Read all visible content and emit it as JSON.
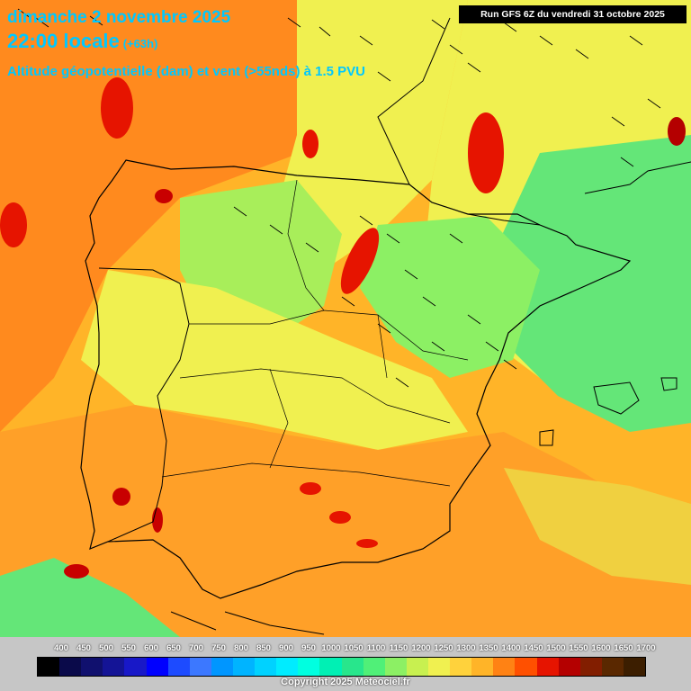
{
  "header": {
    "date": "dimanche 2 novembre 2025",
    "time": "22:00 locale",
    "lead": "(+63h)",
    "subtitle": "Altitude géopotentielle (dam) et vent (>55nds) à 1.5 PVU",
    "run": "Run GFS 6Z du vendredi 31 octobre 2025"
  },
  "legend": {
    "values": [
      "400",
      "450",
      "500",
      "550",
      "600",
      "650",
      "700",
      "750",
      "800",
      "850",
      "900",
      "950",
      "1000",
      "1050",
      "1100",
      "1150",
      "1200",
      "1250",
      "1300",
      "1350",
      "1400",
      "1450",
      "1500",
      "1550",
      "1600",
      "1650",
      "1700"
    ],
    "colors": [
      "#000000",
      "#0a0a4a",
      "#10106e",
      "#141496",
      "#1818c8",
      "#0000ff",
      "#1d4bff",
      "#3c78ff",
      "#0096ff",
      "#00b4ff",
      "#00d2ff",
      "#00ecff",
      "#00ffe0",
      "#00f0b4",
      "#28e68c",
      "#50f078",
      "#8cf064",
      "#c8f050",
      "#f0f050",
      "#ffd23c",
      "#ffb428",
      "#ff8214",
      "#ff5000",
      "#e61400",
      "#b40000",
      "#821e00",
      "#5a2800",
      "#3c1e00"
    ],
    "copyright": "Copyright 2025 Meteociel.fr"
  },
  "colors": {
    "title": "#00c8ff",
    "sea_green": "#3cdc78",
    "orange": "#ffa028",
    "yellow": "#f0f050",
    "red": "#e61400"
  }
}
